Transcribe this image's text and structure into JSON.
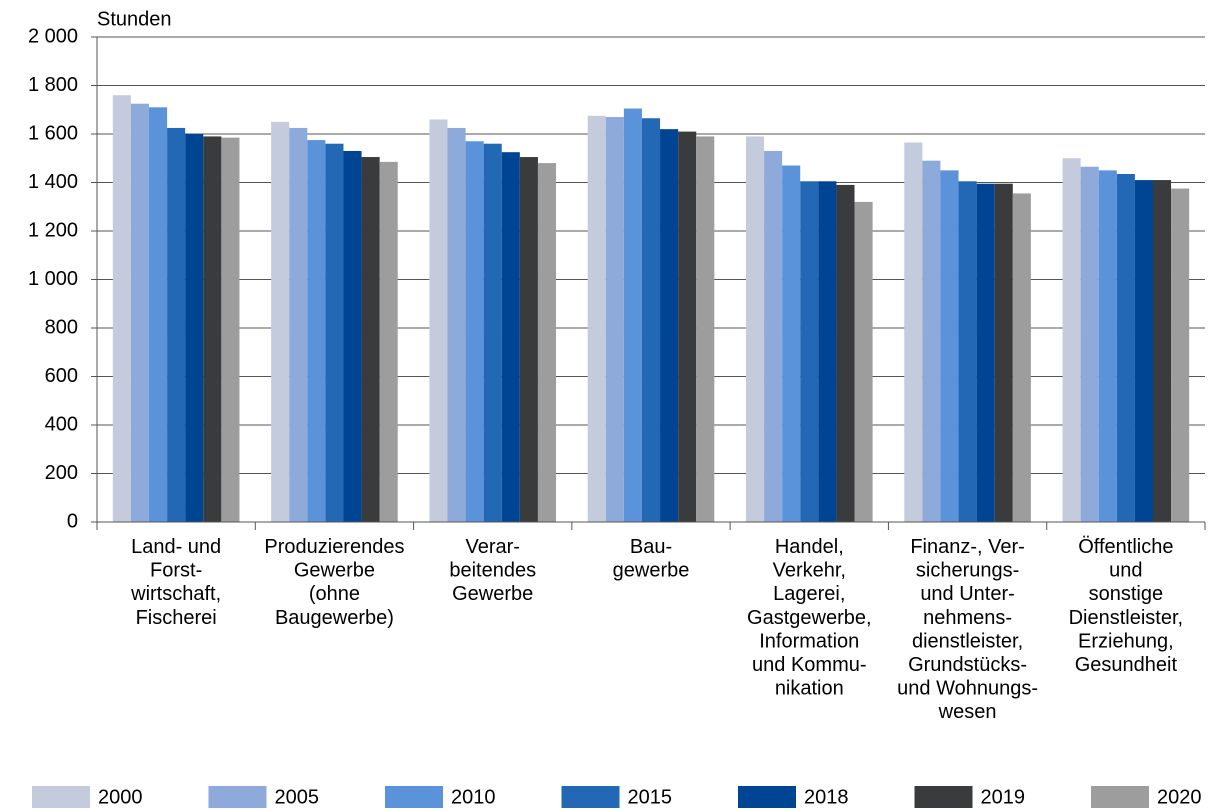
{
  "chart_data": {
    "type": "bar",
    "y_label": "Stunden",
    "categories": [
      [
        "Land- und",
        "Forst-",
        "wirtschaft,",
        "Fischerei"
      ],
      [
        "Produzierendes",
        "Gewerbe",
        "(ohne",
        "Baugewerbe)"
      ],
      [
        "Verar-",
        "beitendes",
        "Gewerbe"
      ],
      [
        "Bau-",
        "gewerbe"
      ],
      [
        "Handel,",
        "Verkehr,",
        "Lagerei,",
        "Gastgewerbe,",
        "Information",
        "und Kommu-",
        "nikation"
      ],
      [
        "Finanz-, Ver-",
        "sicherungs-",
        "und Unter-",
        "nehmens-",
        "dienstleister,",
        "Grundstücks-",
        "und Wohnungs-",
        "wesen"
      ],
      [
        "Öffentliche",
        "und",
        "sonstige",
        "Dienstleister,",
        "Erziehung,",
        "Gesundheit"
      ]
    ],
    "series": [
      {
        "name": "2000",
        "color": "#c3cbdc",
        "values": [
          1760,
          1650,
          1660,
          1675,
          1590,
          1565,
          1500
        ]
      },
      {
        "name": "2005",
        "color": "#8eaadb",
        "values": [
          1725,
          1625,
          1625,
          1670,
          1530,
          1490,
          1465
        ]
      },
      {
        "name": "2010",
        "color": "#5b93db",
        "values": [
          1710,
          1575,
          1570,
          1705,
          1470,
          1450,
          1450
        ]
      },
      {
        "name": "2015",
        "color": "#2368b5",
        "values": [
          1625,
          1560,
          1560,
          1665,
          1405,
          1405,
          1435
        ]
      },
      {
        "name": "2018",
        "color": "#004494",
        "values": [
          1600,
          1530,
          1525,
          1620,
          1405,
          1395,
          1410
        ]
      },
      {
        "name": "2019",
        "color": "#3a3b3d",
        "values": [
          1590,
          1505,
          1505,
          1610,
          1390,
          1395,
          1410
        ]
      },
      {
        "name": "2020",
        "color": "#9d9d9d",
        "values": [
          1585,
          1485,
          1480,
          1590,
          1320,
          1355,
          1375
        ]
      }
    ],
    "ylim": [
      0,
      2000
    ],
    "yticks": [
      0,
      200,
      400,
      600,
      800,
      {
        "value": 1000,
        "label": "1 000"
      },
      {
        "value": 1200,
        "label": "1 200"
      },
      {
        "value": 1400,
        "label": "1 400"
      },
      {
        "value": 1600,
        "label": "1 600"
      },
      {
        "value": 1800,
        "label": "1 800"
      },
      {
        "value": 2000,
        "label": "2 000"
      }
    ],
    "grid": true,
    "legend": "bottom"
  }
}
